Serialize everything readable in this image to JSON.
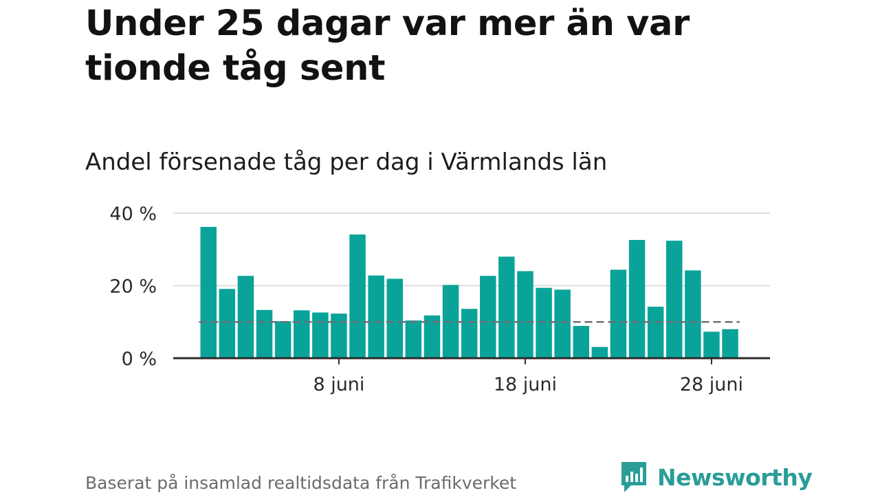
{
  "headline": "Under 25 dagar var mer än var tionde tåg sent",
  "subtitle": "Andel försenade tåg per dag i Värmlands län",
  "footer": {
    "source": "Baserat på insamlad realtidsdata från Trafikverket",
    "brand": "Newsworthy"
  },
  "colors": {
    "bar": "#0aa39a",
    "reference_line": "#6e6e78",
    "grid": "#dddddd",
    "axis": "#2b2b2b",
    "brand": "#2a9d97"
  },
  "chart_data": {
    "type": "bar",
    "title": "Andel försenade tåg per dag i Värmlands län",
    "xlabel": "",
    "ylabel": "",
    "ylim": [
      0,
      40
    ],
    "yticks": [
      {
        "value": 0,
        "label": "0 %"
      },
      {
        "value": 20,
        "label": "20 %"
      },
      {
        "value": 40,
        "label": "40 %"
      }
    ],
    "xticks": [
      {
        "day": 8,
        "label": "8 juni"
      },
      {
        "day": 18,
        "label": "18 juni"
      },
      {
        "day": 28,
        "label": "28 juni"
      }
    ],
    "days": [
      1,
      2,
      3,
      4,
      5,
      6,
      7,
      8,
      9,
      10,
      11,
      12,
      13,
      14,
      15,
      16,
      17,
      18,
      19,
      20,
      21,
      22,
      23,
      24,
      25,
      26,
      27,
      28,
      29
    ],
    "values": [
      36.2,
      19.1,
      22.7,
      13.3,
      10.2,
      13.2,
      12.6,
      12.3,
      34.1,
      22.8,
      21.9,
      10.4,
      11.8,
      20.2,
      13.6,
      22.7,
      28.0,
      24.0,
      19.4,
      18.9,
      8.9,
      3.1,
      24.4,
      32.6,
      14.2,
      32.4,
      24.2,
      7.3,
      8.0
    ],
    "reference_line": {
      "value": 10,
      "style": "dashed"
    },
    "grid": true
  }
}
